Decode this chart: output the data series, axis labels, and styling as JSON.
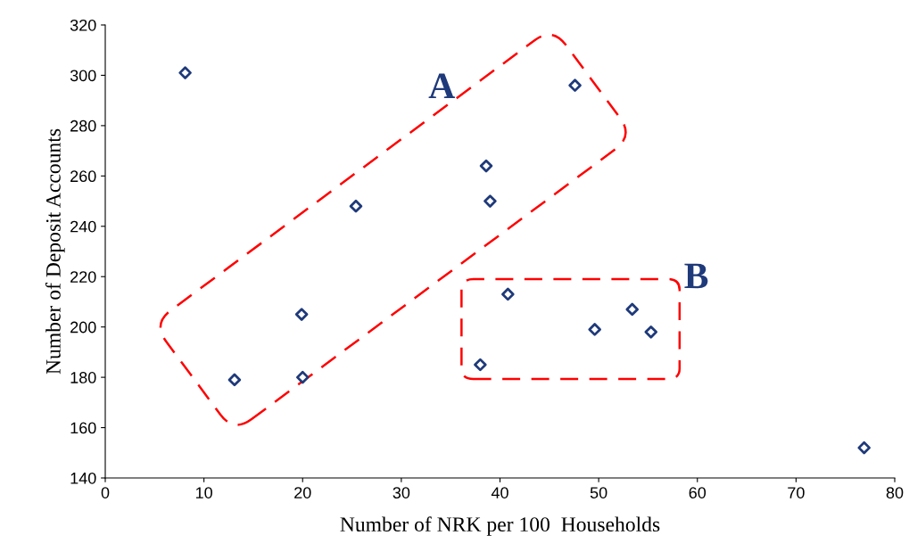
{
  "chart_data": {
    "type": "scatter",
    "xlabel": "Number of NRK per 100  Households",
    "ylabel": "Number of Deposit Accounts",
    "x": [
      8.1,
      13.1,
      19.9,
      20.0,
      25.4,
      38.6,
      39.0,
      38.0,
      40.8,
      47.6,
      49.6,
      53.4,
      55.3,
      76.9
    ],
    "series": [
      {
        "color": "#1f3a7a",
        "values": [
          301,
          179,
          205,
          180,
          248,
          264,
          250,
          185,
          213,
          296,
          199,
          207,
          198,
          152
        ]
      }
    ],
    "xlim": [
      0,
      80
    ],
    "xticks": [
      0,
      10,
      20,
      30,
      40,
      50,
      60,
      70,
      80
    ],
    "ylim": [
      140,
      320
    ],
    "yticks": [
      140,
      160,
      180,
      200,
      220,
      240,
      260,
      280,
      300,
      320
    ],
    "marker": "diamond",
    "grid": false,
    "legend": false,
    "annotations": [
      "A",
      "B"
    ]
  }
}
